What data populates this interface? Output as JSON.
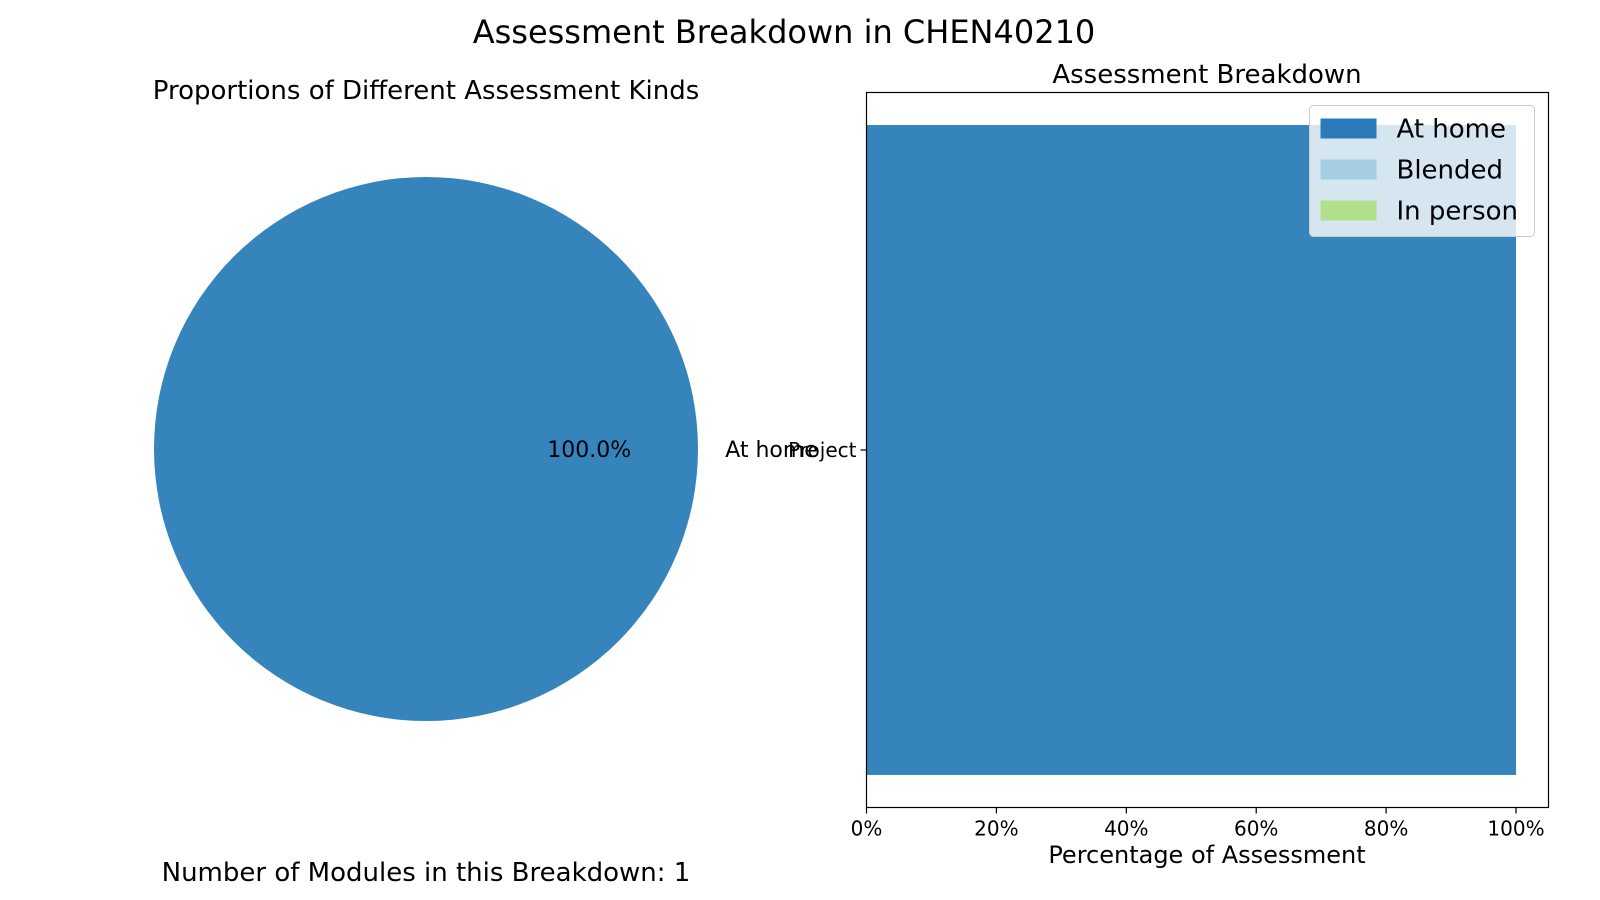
{
  "figure": {
    "suptitle": "Assessment Breakdown in CHEN40210",
    "footer": "Number of Modules in this Breakdown: 1"
  },
  "colors": {
    "at_home": "#3584bb",
    "at_home_legend": "#2b7bba",
    "blended": "#a6cee3",
    "in_person": "#b2df8a"
  },
  "chart_data": [
    {
      "type": "pie",
      "title": "Proportions of Different Assessment Kinds",
      "slices": [
        {
          "label": "At home",
          "value": 100.0,
          "pct_label": "100.0%"
        }
      ]
    },
    {
      "type": "bar",
      "orientation": "horizontal",
      "stacked": true,
      "title": "Assessment Breakdown",
      "xlabel": "Percentage of Assessment",
      "ylabel": "",
      "categories": [
        "Project"
      ],
      "series": [
        {
          "name": "At home",
          "values": [
            100
          ]
        },
        {
          "name": "Blended",
          "values": [
            0
          ]
        },
        {
          "name": "In person",
          "values": [
            0
          ]
        }
      ],
      "xlim": [
        0,
        105
      ],
      "xticks": [
        {
          "value": 0,
          "label": "0%"
        },
        {
          "value": 20,
          "label": "20%"
        },
        {
          "value": 40,
          "label": "40%"
        },
        {
          "value": 60,
          "label": "60%"
        },
        {
          "value": 80,
          "label": "80%"
        },
        {
          "value": 100,
          "label": "100%"
        }
      ],
      "legend": {
        "placement": "top-right"
      },
      "grid": false
    }
  ]
}
